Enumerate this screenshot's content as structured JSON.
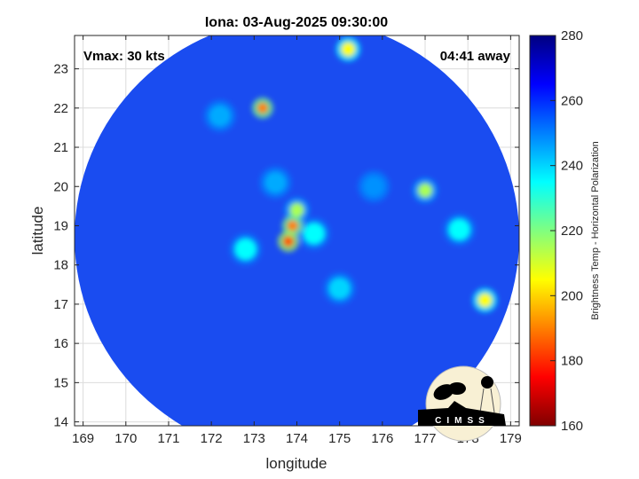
{
  "chart_data": {
    "type": "heatmap",
    "title": "Iona: 03-Aug-2025 09:30:00",
    "xlabel": "longitude",
    "ylabel": "latitude",
    "xlim": [
      168.8,
      179.2
    ],
    "ylim": [
      13.9,
      23.85
    ],
    "xticks": [
      169,
      170,
      171,
      172,
      173,
      174,
      175,
      176,
      177,
      178,
      179
    ],
    "yticks": [
      14,
      15,
      16,
      17,
      18,
      19,
      20,
      21,
      22,
      23
    ],
    "grid": true,
    "annotations": {
      "vmax": "Vmax: 30 kts",
      "time_offset": "04:41 away"
    },
    "colorbar": {
      "label": "Brightness Temp - Horizontal Polarization",
      "range": [
        160,
        280
      ],
      "ticks": [
        160,
        180,
        200,
        220,
        240,
        260,
        280
      ],
      "colormap": "jet"
    },
    "swath": {
      "center_lon": 174.0,
      "center_lat": 18.7,
      "radius_lon": 5.2,
      "radius_lat": 5.6,
      "background_value": 262
    },
    "features": [
      {
        "lon": 173.8,
        "lat": 18.6,
        "value": 185
      },
      {
        "lon": 173.9,
        "lat": 19.0,
        "value": 190
      },
      {
        "lon": 174.0,
        "lat": 19.4,
        "value": 215
      },
      {
        "lon": 173.2,
        "lat": 22.0,
        "value": 190
      },
      {
        "lon": 175.2,
        "lat": 23.5,
        "value": 205
      },
      {
        "lon": 177.0,
        "lat": 19.9,
        "value": 215
      },
      {
        "lon": 178.4,
        "lat": 17.1,
        "value": 205
      },
      {
        "lon": 177.8,
        "lat": 18.9,
        "value": 235
      },
      {
        "lon": 172.8,
        "lat": 18.4,
        "value": 235
      },
      {
        "lon": 174.4,
        "lat": 18.8,
        "value": 235
      },
      {
        "lon": 172.2,
        "lat": 21.8,
        "value": 245
      },
      {
        "lon": 173.5,
        "lat": 20.1,
        "value": 245
      },
      {
        "lon": 175.8,
        "lat": 20.0,
        "value": 248
      },
      {
        "lon": 175.0,
        "lat": 17.4,
        "value": 240
      }
    ],
    "logo": "CIMSS"
  },
  "colors": {
    "background_field": "#1a4cf0",
    "axes": "#262626"
  }
}
